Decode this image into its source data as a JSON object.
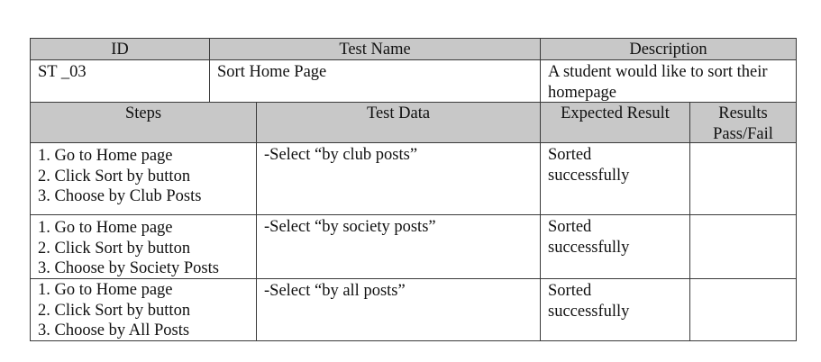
{
  "header_row": {
    "id": "ID",
    "test_name": "Test Name",
    "description": "Description"
  },
  "info_row": {
    "id": "ST _03",
    "test_name": "Sort Home Page",
    "description_line1": "A student would like to sort their",
    "description_line2": "homepage"
  },
  "steps_header": {
    "steps": "Steps",
    "test_data": "Test Data",
    "expected_result": "Expected Result",
    "results_line1": "Results",
    "results_line2": "Pass/Fail"
  },
  "rows": [
    {
      "steps": [
        "1. Go to Home page",
        "2. Click Sort by button",
        "3. Choose by Club Posts"
      ],
      "test_data": "-Select “by club posts”",
      "expected": [
        "Sorted",
        "successfully"
      ],
      "result": ""
    },
    {
      "steps": [
        "1. Go to Home page",
        "2. Click Sort by button",
        "3. Choose by Society Posts"
      ],
      "test_data": "-Select “by society posts”",
      "expected": [
        "Sorted",
        "successfully"
      ],
      "result": ""
    },
    {
      "steps": [
        "1. Go to Home page",
        "2. Click Sort by button",
        "3. Choose by All Posts"
      ],
      "test_data": "-Select “by all posts”",
      "expected": [
        "Sorted",
        "successfully"
      ],
      "result": ""
    }
  ]
}
